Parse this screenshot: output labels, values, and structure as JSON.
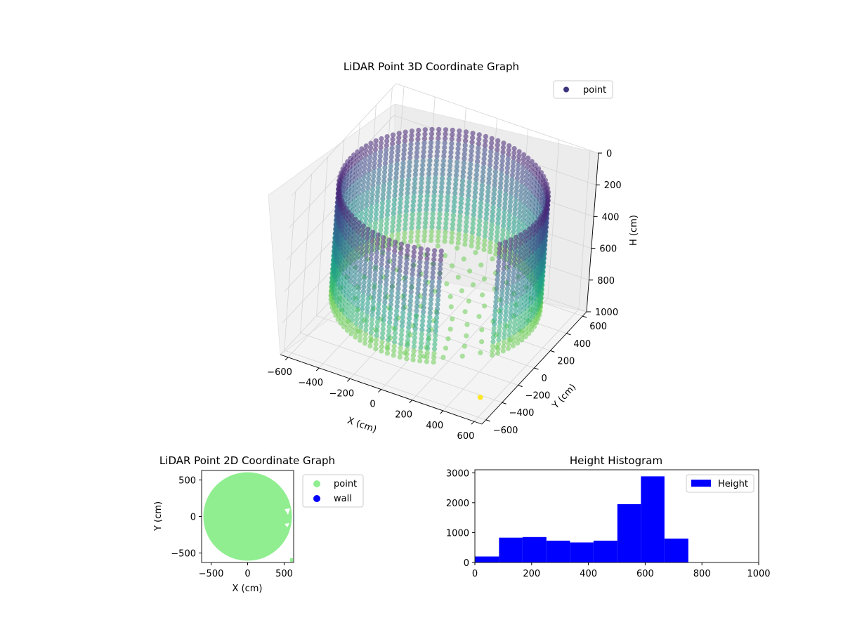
{
  "colors": {
    "viridis": [
      "#440154",
      "#482878",
      "#3e4989",
      "#31688e",
      "#26828e",
      "#1f9e89",
      "#35b779",
      "#6ece58",
      "#b5de2b",
      "#fde725"
    ],
    "point2d": "#90ee90",
    "wall": "#0000ff",
    "hist": "#0000ff"
  },
  "chart_data": [
    {
      "type": "scatter",
      "subtype": "scatter3d",
      "title": "LiDAR Point 3D Coordinate Graph",
      "xlabel": "X (cm)",
      "ylabel": "Y (cm)",
      "zlabel": "H (cm)",
      "xlim": [
        -650,
        650
      ],
      "ylim": [
        -650,
        650
      ],
      "zlim": [
        0,
        1000
      ],
      "z_inverted": true,
      "xticks": [
        "−600",
        "−400",
        "−200",
        "0",
        "200",
        "400",
        "600"
      ],
      "yticks": [
        "−600",
        "−400",
        "−200",
        "0",
        "200",
        "400",
        "600"
      ],
      "zticks": [
        "0",
        "200",
        "400",
        "600",
        "800",
        "1000"
      ],
      "legend": {
        "placement": "top-right",
        "entries": [
          "point"
        ]
      },
      "colormap": "viridis (by height)",
      "cylinder": {
        "radius_cm": 600,
        "h_top_cm": 100,
        "h_bottom_cm": 800
      },
      "grid": true
    },
    {
      "type": "scatter",
      "title": "LiDAR Point 2D Coordinate Graph",
      "xlabel": "X (cm)",
      "ylabel": "Y (cm)",
      "xlim": [
        -630,
        630
      ],
      "ylim": [
        -630,
        630
      ],
      "xticks": [
        "−500",
        "0",
        "500"
      ],
      "yticks": [
        "500",
        "0",
        "−500"
      ],
      "legend": {
        "placement": "outside-right",
        "entries": [
          "point",
          "wall"
        ]
      },
      "filled_disk_radius_cm": 600
    },
    {
      "type": "bar",
      "subtype": "histogram",
      "title": "Height Histogram",
      "xlim": [
        0,
        1000
      ],
      "ylim": [
        0,
        3100
      ],
      "xticks": [
        "0",
        "200",
        "400",
        "600",
        "800",
        "1000"
      ],
      "yticks": [
        "0",
        "1000",
        "2000",
        "3000"
      ],
      "legend": {
        "placement": "top-right",
        "entries": [
          "Height"
        ]
      },
      "bins": [
        {
          "start": 0,
          "end": 85,
          "count": 200
        },
        {
          "start": 85,
          "end": 168,
          "count": 830
        },
        {
          "start": 168,
          "end": 252,
          "count": 850
        },
        {
          "start": 252,
          "end": 335,
          "count": 730
        },
        {
          "start": 335,
          "end": 418,
          "count": 670
        },
        {
          "start": 418,
          "end": 502,
          "count": 730
        },
        {
          "start": 502,
          "end": 585,
          "count": 1950
        },
        {
          "start": 585,
          "end": 668,
          "count": 2880
        },
        {
          "start": 668,
          "end": 752,
          "count": 800
        }
      ]
    }
  ]
}
